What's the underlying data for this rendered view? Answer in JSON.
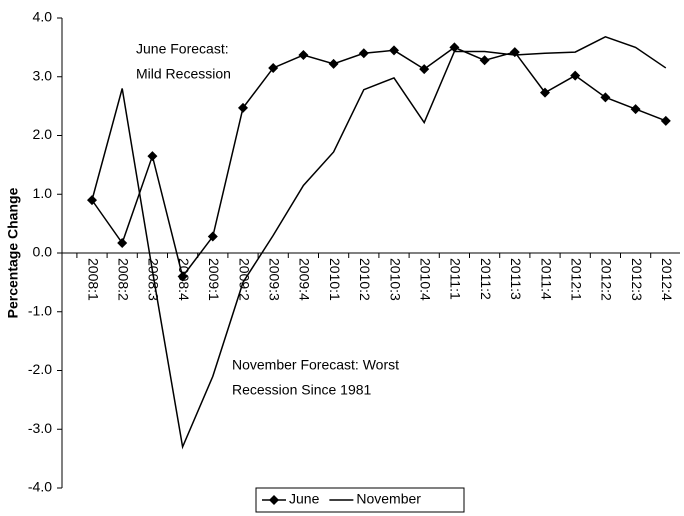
{
  "chart_data": {
    "type": "line",
    "y_label": "Percentage Change",
    "categories": [
      "2008:1",
      "2008:2",
      "2008:3",
      "2008:4",
      "2009:1",
      "2009:2",
      "2009:3",
      "2009:4",
      "2010:1",
      "2010:2",
      "2010:3",
      "2010:4",
      "2011:1",
      "2011:2",
      "2011:3",
      "2011:4",
      "2012:1",
      "2012:2",
      "2012:3",
      "2012:4"
    ],
    "series": [
      {
        "name": "June",
        "color": "#000000",
        "marker": "diamond",
        "values": [
          0.9,
          0.17,
          1.65,
          -0.4,
          0.28,
          2.47,
          3.15,
          3.37,
          3.22,
          3.4,
          3.45,
          3.13,
          3.5,
          3.28,
          3.42,
          2.73,
          3.02,
          2.65,
          2.45,
          2.25
        ]
      },
      {
        "name": "November",
        "color": "#000000",
        "marker": "none",
        "values": [
          0.9,
          2.8,
          -0.3,
          -3.3,
          -2.1,
          -0.5,
          0.3,
          1.15,
          1.72,
          2.78,
          2.98,
          2.22,
          3.43,
          3.43,
          3.37,
          3.4,
          3.42,
          3.68,
          3.5,
          3.15
        ]
      }
    ],
    "ylim": [
      -4,
      4
    ],
    "yticks": [
      {
        "value": -4,
        "label": "-4.0"
      },
      {
        "value": -3,
        "label": "-3.0"
      },
      {
        "value": -2,
        "label": "-2.0"
      },
      {
        "value": -1,
        "label": "-1.0"
      },
      {
        "value": 0,
        "label": "0.0"
      },
      {
        "value": 1,
        "label": "1.0"
      },
      {
        "value": 2,
        "label": "2.0"
      },
      {
        "value": 3,
        "label": "3.0"
      },
      {
        "value": 4,
        "label": "4.0"
      }
    ],
    "annotations": [
      {
        "lines": [
          "June Forecast:",
          "Mild Recession"
        ]
      },
      {
        "lines": [
          "November Forecast: Worst",
          "Recession Since 1981"
        ]
      }
    ],
    "grid": false
  }
}
